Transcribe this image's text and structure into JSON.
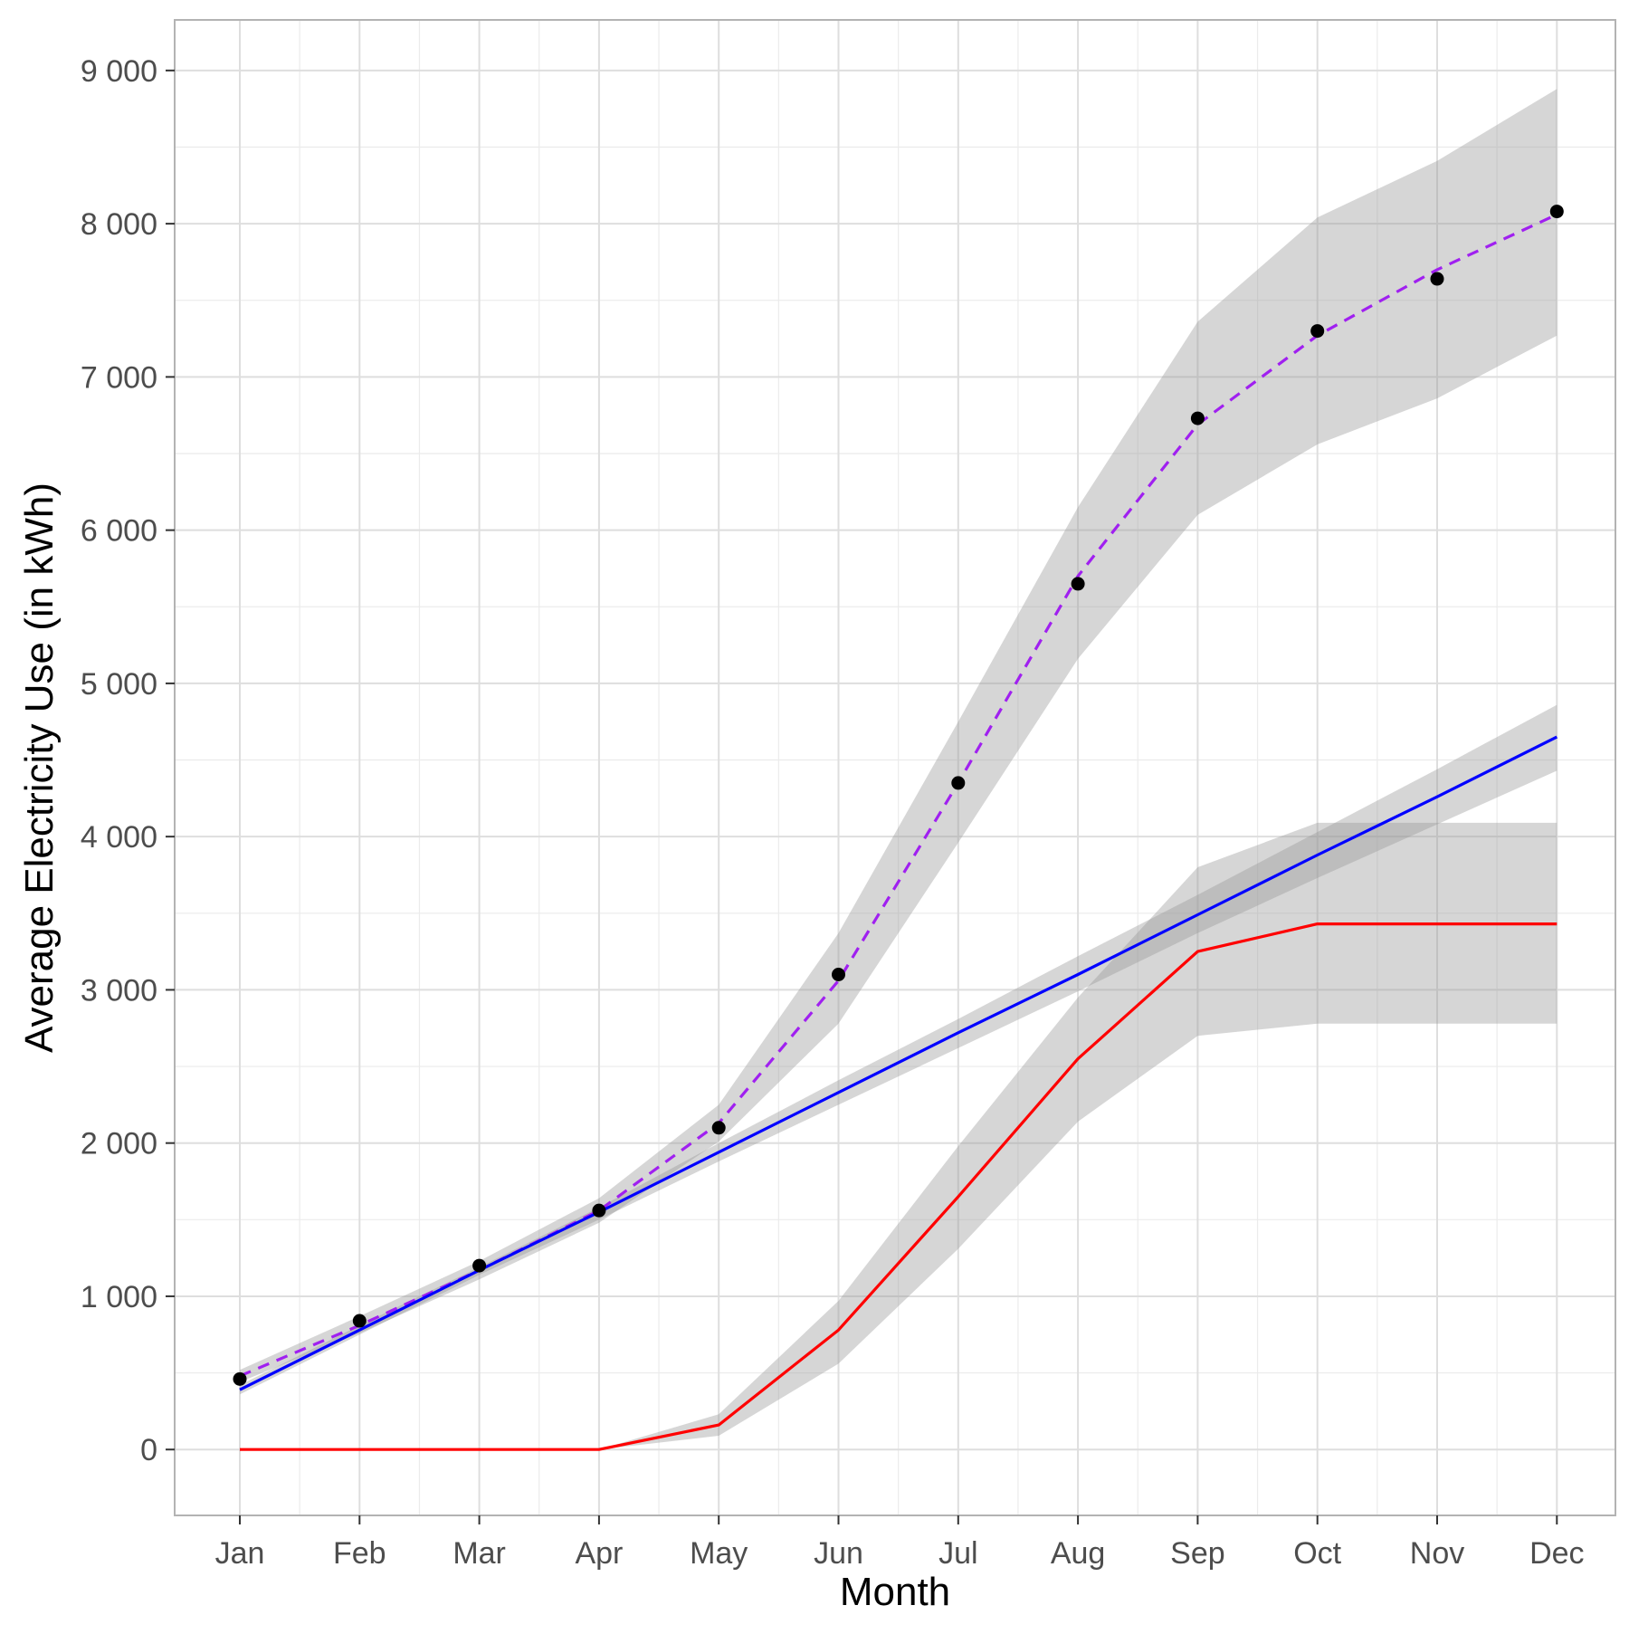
{
  "chart_data": {
    "type": "line",
    "title": "",
    "xlabel": "Month",
    "ylabel": "Average Electricity Use (in kWh)",
    "categories": [
      "Jan",
      "Feb",
      "Mar",
      "Apr",
      "May",
      "Jun",
      "Jul",
      "Aug",
      "Sep",
      "Oct",
      "Nov",
      "Dec"
    ],
    "ylim": [
      -430,
      9330
    ],
    "yticks": [
      0,
      1000,
      2000,
      3000,
      4000,
      5000,
      6000,
      7000,
      8000,
      9000
    ],
    "ytick_labels": [
      "0",
      "1 000",
      "2 000",
      "3 000",
      "4 000",
      "5 000",
      "6 000",
      "7 000",
      "8 000",
      "9 000"
    ],
    "grid": true,
    "legend": "none",
    "observed_points": {
      "color": "#000000",
      "values": [
        460,
        840,
        1200,
        1560,
        2100,
        3100,
        4350,
        5650,
        6730,
        7300,
        7640,
        8080
      ]
    },
    "series": [
      {
        "style": "dashed",
        "color": "#A020F0",
        "values": [
          480,
          810,
          1170,
          1560,
          2130,
          3060,
          4350,
          5700,
          6690,
          7270,
          7700,
          8060
        ],
        "band_upper": [
          520,
          870,
          1230,
          1640,
          2250,
          3370,
          4750,
          6150,
          7360,
          8040,
          8410,
          8880
        ],
        "band_lower": [
          440,
          760,
          1110,
          1480,
          2010,
          2780,
          3960,
          5160,
          6100,
          6560,
          6860,
          7270
        ]
      },
      {
        "style": "solid",
        "color": "#0000FF",
        "values": [
          390,
          780,
          1170,
          1550,
          1940,
          2330,
          2720,
          3100,
          3490,
          3880,
          4260,
          4650
        ],
        "band_upper": [
          420,
          810,
          1190,
          1580,
          2000,
          2410,
          2810,
          3220,
          3620,
          4030,
          4440,
          4860
        ],
        "band_lower": [
          360,
          750,
          1140,
          1500,
          1880,
          2250,
          2620,
          2990,
          3370,
          3730,
          4080,
          4430
        ]
      },
      {
        "style": "solid",
        "color": "#FF0000",
        "values": [
          0,
          0,
          0,
          0,
          160,
          780,
          1650,
          2550,
          3250,
          3430,
          3430,
          3430
        ],
        "band_upper": [
          0,
          0,
          0,
          0,
          230,
          970,
          1980,
          2950,
          3800,
          4090,
          4090,
          4090
        ],
        "band_lower": [
          0,
          0,
          0,
          0,
          90,
          560,
          1310,
          2140,
          2700,
          2780,
          2780,
          2780
        ]
      }
    ]
  }
}
